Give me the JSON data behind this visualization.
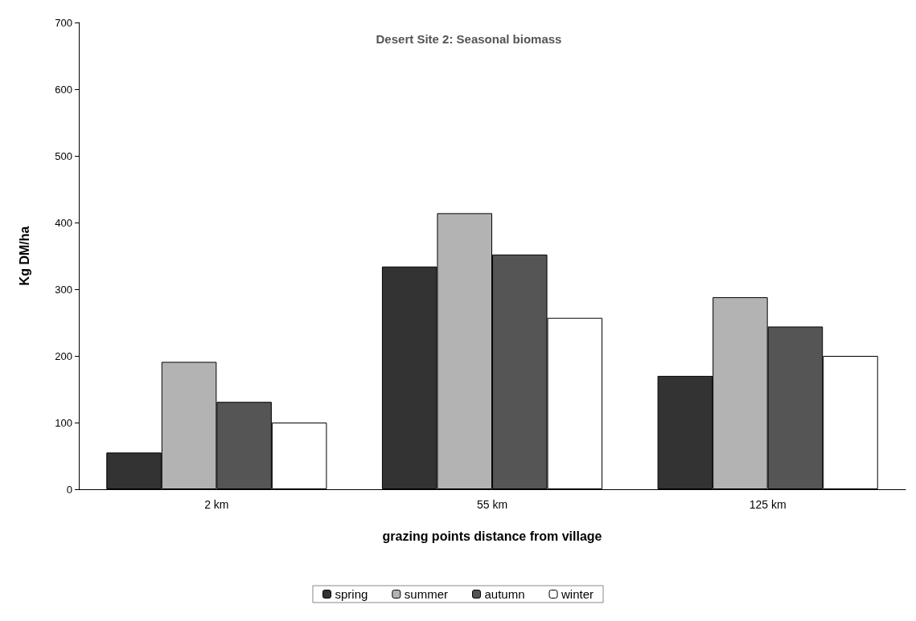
{
  "chart_data": {
    "type": "bar",
    "title": "Desert Site 2: Seasonal biomass",
    "xlabel": "grazing points distance from village",
    "ylabel": "Kg DM/ha",
    "categories": [
      "2 km",
      "55 km",
      "125 km"
    ],
    "series": [
      {
        "name": "spring",
        "color": "#333333",
        "values": [
          55,
          334,
          170
        ]
      },
      {
        "name": "summer",
        "color": "#b3b3b3",
        "values": [
          191,
          414,
          288
        ]
      },
      {
        "name": "autumn",
        "color": "#555555",
        "values": [
          131,
          352,
          244
        ]
      },
      {
        "name": "winter",
        "color": "#ffffff",
        "values": [
          100,
          257,
          200
        ]
      }
    ],
    "ylim": [
      0,
      700
    ],
    "yticks": [
      0,
      100,
      200,
      300,
      400,
      500,
      600,
      700
    ],
    "grid": false,
    "legend": "bottom"
  }
}
